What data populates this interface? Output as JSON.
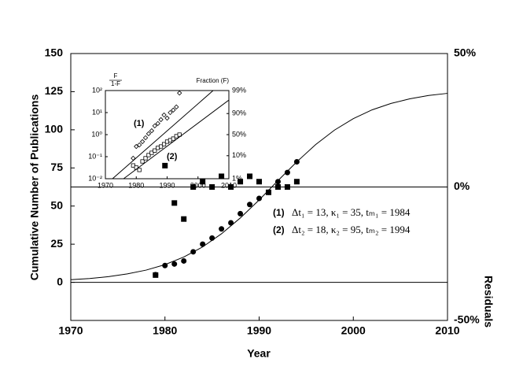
{
  "chart_data": [
    {
      "type": "scatter",
      "xlabel": "Year",
      "ylabel": "Cumulative Number of Publications",
      "y2label": "Residuals",
      "xlim": [
        1970,
        2010
      ],
      "xticks": [
        1970,
        1980,
        1990,
        2000,
        2010
      ],
      "ylim": [
        -25,
        150
      ],
      "yticks": [
        0,
        25,
        50,
        75,
        100,
        125,
        150
      ],
      "y2lim": [
        -50,
        50
      ],
      "y2ticks": [
        {
          "value": 50,
          "label": "50%"
        },
        {
          "value": 0,
          "label": "0%"
        },
        {
          "value": -50,
          "label": "-50%"
        }
      ],
      "zero_lines": [
        {
          "value": 0,
          "axis": "y"
        },
        {
          "value": 0,
          "axis": "y2"
        }
      ],
      "series": [
        {
          "marker": "filled-circle",
          "color": "#000000",
          "x": [
            1979,
            1980,
            1981,
            1982,
            1983,
            1984,
            1985,
            1986,
            1987,
            1988,
            1989,
            1990,
            1991,
            1992,
            1993,
            1994
          ],
          "values": [
            5,
            11,
            12,
            14,
            20,
            25,
            29,
            35,
            39,
            45,
            51,
            55,
            59,
            66,
            72,
            79
          ]
        },
        {
          "marker": "filled-square",
          "color": "#000000",
          "axis": "y2",
          "x": [
            1979,
            1980,
            1981,
            1982,
            1983,
            1984,
            1985,
            1986,
            1987,
            1988,
            1989,
            1990,
            1991,
            1992,
            1993,
            1994
          ],
          "values": [
            -33,
            8,
            -6,
            -12,
            0,
            2,
            0,
            4,
            0,
            2,
            4,
            2,
            -2,
            0,
            0,
            2
          ]
        },
        {
          "marker": "line",
          "color": "#000000",
          "x": [
            1970,
            1972,
            1974,
            1976,
            1978,
            1980,
            1982,
            1984,
            1986,
            1988,
            1990,
            1992,
            1994,
            1996,
            1998,
            2000,
            2002,
            2004,
            2006,
            2008,
            2010
          ],
          "values": [
            1.7,
            2.5,
            3.7,
            5.5,
            8.0,
            11.6,
            16.6,
            23.2,
            31.8,
            42.2,
            54.0,
            66.7,
            79.0,
            90.3,
            99.8,
            107.3,
            113.1,
            117.3,
            120.3,
            122.5,
            123.9
          ]
        }
      ],
      "annotations": [
        {
          "label": "(1)",
          "text": "Δt₁ = 13, κ₁ = 35, tₘ₁ = 1984"
        },
        {
          "label": "(2)",
          "text": "Δt₂ = 18, κ₂ = 95, tₘ₂ = 1994"
        }
      ]
    },
    {
      "type": "scatter",
      "yscale": "log",
      "y2scale": "logit",
      "ylabel": "F",
      "ylabel_denominator": "1-F",
      "y2label": "Fraction (F)",
      "xlim": [
        1970,
        2010
      ],
      "xticks": [
        1970,
        1980,
        1990,
        2000,
        2010
      ],
      "ylim": [
        0.01,
        100
      ],
      "yticks": [
        {
          "value": 100,
          "label": "10²"
        },
        {
          "value": 10,
          "label": "10¹"
        },
        {
          "value": 1,
          "label": "10⁰"
        },
        {
          "value": 0.1,
          "label": "10⁻¹"
        },
        {
          "value": 0.01,
          "label": "10⁻²"
        }
      ],
      "y2lim": [
        1,
        99
      ],
      "y2ticks": [
        {
          "value": 99,
          "label": "99%"
        },
        {
          "value": 90,
          "label": "90%"
        },
        {
          "value": 50,
          "label": "50%"
        },
        {
          "value": 10,
          "label": "10%"
        },
        {
          "value": 1,
          "label": "1%"
        }
      ],
      "series": [
        {
          "marker": "open-diamond",
          "color": "#000000",
          "x": [
            1979,
            1980,
            1981,
            1982,
            1983,
            1984,
            1985,
            1986,
            1987,
            1988,
            1989,
            1990,
            1991,
            1992,
            1993,
            1994
          ],
          "values": [
            0.085,
            0.29,
            0.34,
            0.48,
            0.72,
            1.1,
            1.5,
            2.5,
            3.2,
            4.8,
            7.8,
            5.6,
            10,
            13,
            18,
            77
          ]
        },
        {
          "marker": "open-square",
          "color": "#000000",
          "x": [
            1979,
            1980,
            1981,
            1982,
            1983,
            1984,
            1985,
            1986,
            1987,
            1988,
            1989,
            1990,
            1991,
            1992,
            1993,
            1994
          ],
          "values": [
            0.04,
            0.032,
            0.025,
            0.061,
            0.085,
            0.118,
            0.15,
            0.19,
            0.25,
            0.29,
            0.37,
            0.48,
            0.56,
            0.66,
            0.85,
            1.0
          ]
        },
        {
          "marker": "line",
          "color": "#000000",
          "x": [
            1972.3,
            2004.9
          ],
          "values": [
            0.01,
            100
          ]
        },
        {
          "marker": "line",
          "color": "#000000",
          "x": [
            1975.9,
            2010
          ],
          "values": [
            0.01,
            37
          ]
        }
      ],
      "annotations": [
        {
          "label": "(1)"
        },
        {
          "label": "(2)"
        }
      ]
    }
  ]
}
